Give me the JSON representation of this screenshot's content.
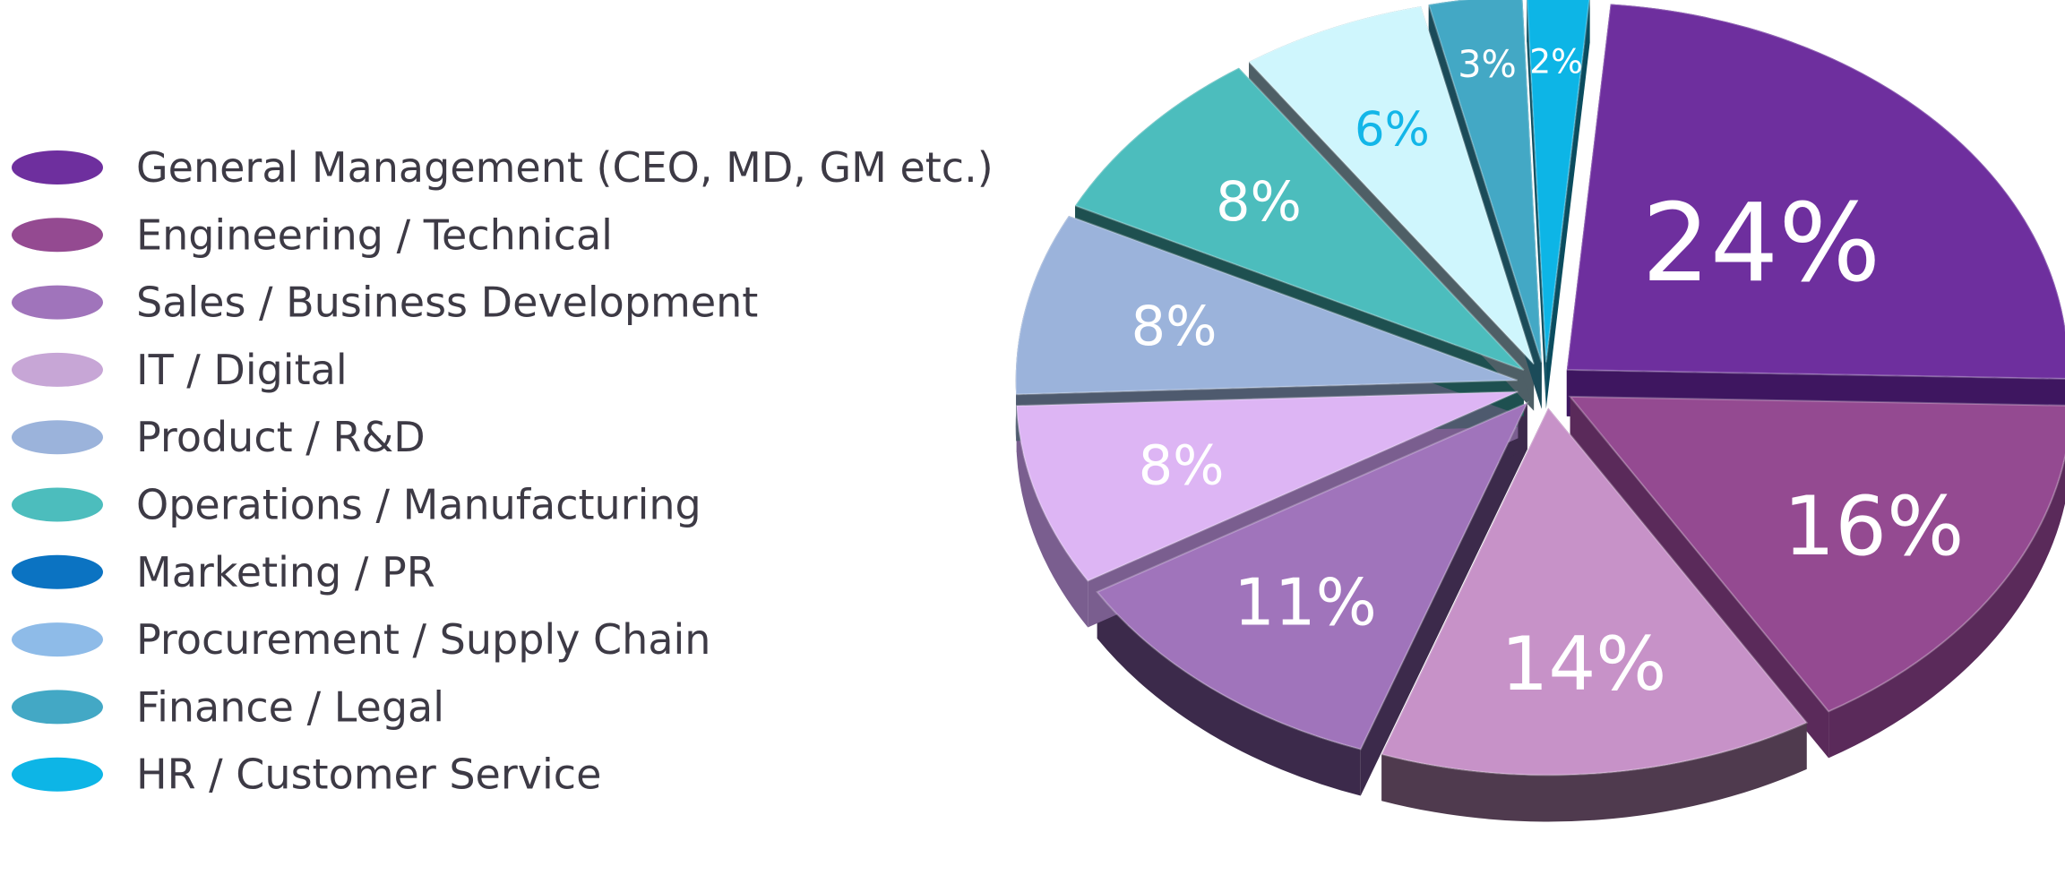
{
  "chart_data": {
    "type": "pie",
    "style": "3d-exploded",
    "title": "",
    "legend_position": "left",
    "categories": [
      "General Management (CEO, MD, GM etc.)",
      "Engineering / Technical",
      "Sales / Business Development",
      "IT / Digital",
      "Product / R&D",
      "Operations / Manufacturing",
      "Marketing / PR",
      "Procurement / Supply Chain",
      "Finance / Legal",
      "HR / Customer Service"
    ],
    "slices": [
      {
        "name": "General Management (CEO, MD, GM etc.)",
        "value": 24,
        "label": "24%",
        "color": "#6e2f9e",
        "side_color": "#3e1660",
        "label_color": "#ffffff"
      },
      {
        "name": "Engineering / Technical",
        "value": 16,
        "label": "16%",
        "color": "#944a91",
        "side_color": "#5a2a5a",
        "label_color": "#ffffff"
      },
      {
        "name": "IT / Digital",
        "value": 14,
        "label": "14%",
        "color": "#c792c8",
        "side_color": "#4f3a4e",
        "label_color": "#ffffff"
      },
      {
        "name": "Sales / Business Development",
        "value": 11,
        "label": "11%",
        "color": "#a074bb",
        "side_color": "#3c2a4b",
        "label_color": "#ffffff"
      },
      {
        "name": "Procurement / Supply Chain",
        "value": 8,
        "label": "8%",
        "color": "#ddb5f4",
        "side_color": "#7a5e8f",
        "label_color": "#ffffff"
      },
      {
        "name": "Product / R&D",
        "value": 8,
        "label": "8%",
        "color": "#9bb3db",
        "side_color": "#4e5a6e",
        "label_color": "#ffffff"
      },
      {
        "name": "Operations / Manufacturing",
        "value": 8,
        "label": "8%",
        "color": "#4cbdbd",
        "side_color": "#1e5050",
        "label_color": "#ffffff"
      },
      {
        "name": "Marketing / PR",
        "value": 6,
        "label": "6%",
        "color": "#cff6fd",
        "side_color": "#4e5f66",
        "label_color": "#13b6e8"
      },
      {
        "name": "Finance / Legal",
        "value": 3,
        "label": "3%",
        "color": "#43a8c5",
        "side_color": "#1b4b59",
        "label_color": "#ffffff"
      },
      {
        "name": "HR / Customer Service",
        "value": 2,
        "label": "2%",
        "color": "#0db5e6",
        "side_color": "#0a4c5e",
        "label_color": "#ffffff"
      }
    ],
    "legend": [
      {
        "label": "General Management (CEO, MD, GM etc.)",
        "color": "#6e2f9e"
      },
      {
        "label": "Engineering / Technical",
        "color": "#944a91"
      },
      {
        "label": "Sales / Business Development",
        "color": "#a074bb"
      },
      {
        "label": "IT / Digital",
        "color": "#c7a6d6"
      },
      {
        "label": "Product / R&D",
        "color": "#9bb3db"
      },
      {
        "label": "Operations / Manufacturing",
        "color": "#4cbdbd"
      },
      {
        "label": "Marketing / PR",
        "color": "#0b73c2"
      },
      {
        "label": "Procurement / Supply Chain",
        "color": "#8ebbe8"
      },
      {
        "label": "Finance / Legal",
        "color": "#43a8c5"
      },
      {
        "label": "HR / Customer Service",
        "color": "#0db5e6"
      }
    ]
  }
}
